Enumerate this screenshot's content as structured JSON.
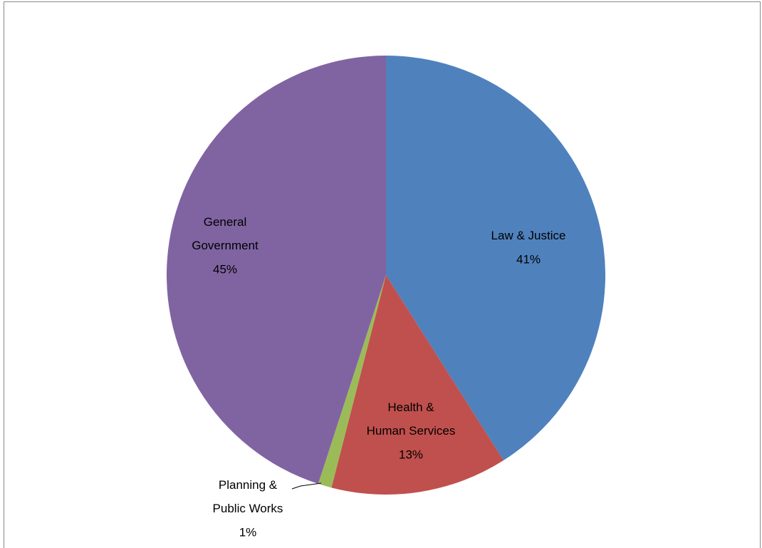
{
  "chart_data": {
    "type": "pie",
    "categories": [
      "Law & Justice",
      "Health & Human Services",
      "Planning & Public Works",
      "General Government"
    ],
    "values": [
      41,
      13,
      1,
      45
    ],
    "value_labels": [
      "41%",
      "13%",
      "1%",
      "45%"
    ],
    "colors": [
      "#4f81bd",
      "#c0504d",
      "#9bbb59",
      "#8064a2"
    ]
  }
}
